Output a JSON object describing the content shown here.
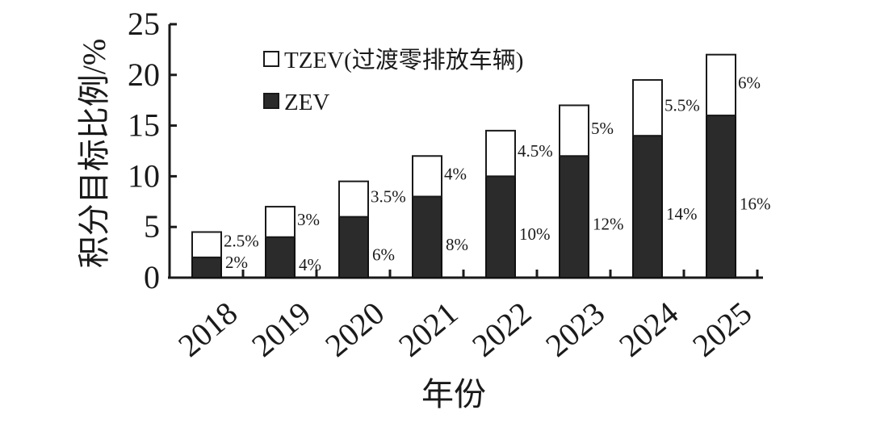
{
  "chart_data": {
    "type": "bar",
    "stacked": true,
    "categories": [
      "2018",
      "2019",
      "2020",
      "2021",
      "2022",
      "2023",
      "2024",
      "2025"
    ],
    "series": [
      {
        "name": "ZEV",
        "values": [
          2,
          4,
          6,
          8,
          10,
          12,
          14,
          16
        ],
        "labels": [
          "2%",
          "4%",
          "6%",
          "8%",
          "10%",
          "12%",
          "14%",
          "16%"
        ],
        "color": "#2b2b2b"
      },
      {
        "name": "TZEV(过渡零排放车辆)",
        "values": [
          2.5,
          3,
          3.5,
          4,
          4.5,
          5,
          5.5,
          6
        ],
        "labels": [
          "2.5%",
          "3%",
          "3.5%",
          "4%",
          "4.5%",
          "5%",
          "5.5%",
          "6%"
        ],
        "color": "#ffffff"
      }
    ],
    "title": "",
    "xlabel": "年份",
    "ylabel": "积分目标比例/%",
    "ylim": [
      0,
      25
    ],
    "yticks": [
      "0",
      "5",
      "10",
      "15",
      "20",
      "25"
    ],
    "grid": false,
    "legend_position": "top-center"
  }
}
